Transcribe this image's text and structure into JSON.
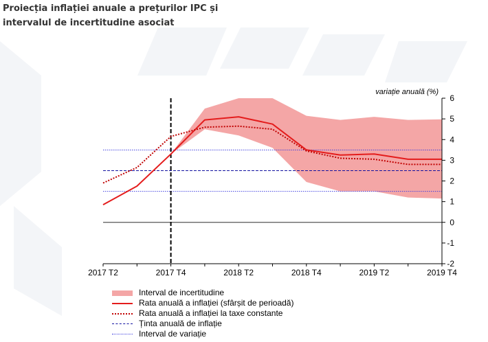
{
  "title": {
    "line1": "Proiecția inflației anuale a prețurilor IPC și",
    "line2": "intervalul de incertitudine asociat"
  },
  "unit_label": "variație anuală (%)",
  "legend": [
    {
      "key": "band",
      "label": "Interval de incertitudine"
    },
    {
      "key": "solid",
      "label": "Rata anuală a inflației (sfârșit de perioadă)"
    },
    {
      "key": "dotted",
      "label": "Rata anuală a inflației la taxe constante"
    },
    {
      "key": "target",
      "label": "Ținta anuală de inflație"
    },
    {
      "key": "variation",
      "label": "Interval de variație"
    }
  ],
  "colors": {
    "band": "#f4a6a6",
    "solid": "#e41c1c",
    "dotted": "#c00000",
    "target": "#1010a0",
    "variation": "#4040e0"
  },
  "chart_data": {
    "type": "line",
    "x": [
      "2017 T2",
      "2017 T3",
      "2017 T4",
      "2018 T1",
      "2018 T2",
      "2018 T3",
      "2018 T4",
      "2019 T1",
      "2019 T2",
      "2019 T3",
      "2019 T4"
    ],
    "x_tick_labels": [
      "2017 T2",
      "2017 T4",
      "2018 T2",
      "2018 T4",
      "2019 T2",
      "2019 T4"
    ],
    "ylim": [
      -2,
      6
    ],
    "y_ticks": [
      -2,
      -1,
      0,
      1,
      2,
      3,
      4,
      5,
      6
    ],
    "series": [
      {
        "name": "Rata anuală a inflației (sfârșit de perioadă)",
        "style": "solid",
        "values": [
          0.85,
          1.75,
          3.3,
          4.95,
          5.1,
          4.75,
          3.5,
          3.25,
          3.3,
          3.05,
          3.05
        ]
      },
      {
        "name": "Rata anuală a inflației la taxe constante",
        "style": "dotted",
        "values": [
          1.9,
          2.65,
          4.15,
          4.6,
          4.65,
          4.5,
          3.45,
          3.1,
          3.05,
          2.8,
          2.8
        ]
      }
    ],
    "band": {
      "name": "Interval de incertitudine",
      "start_index": 2,
      "upper": [
        3.3,
        5.5,
        6.0,
        6.0,
        5.15,
        4.95,
        5.1,
        4.95,
        4.98
      ],
      "lower": [
        3.3,
        4.5,
        4.2,
        3.6,
        1.95,
        1.5,
        1.5,
        1.2,
        1.15
      ]
    },
    "target": {
      "name": "Ținta anuală de inflație",
      "value": 2.5
    },
    "variation_interval": {
      "name": "Interval de variație",
      "values": [
        1.5,
        3.5
      ]
    },
    "forecast_marker_index": 2,
    "y_axis_side": "right",
    "grid": false
  }
}
